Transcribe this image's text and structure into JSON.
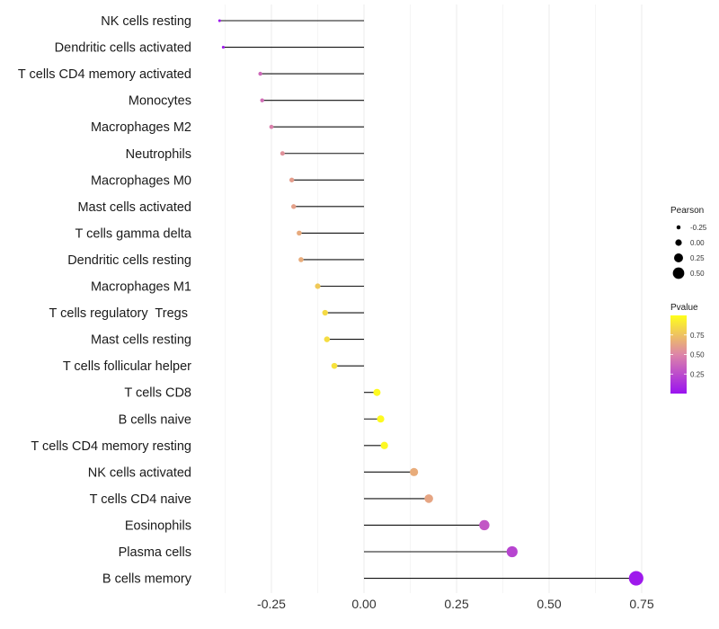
{
  "chart_data": {
    "type": "lollipop",
    "title": "",
    "xlabel": "",
    "ylabel": "",
    "xlim": [
      -0.4,
      0.76
    ],
    "x_ticks": [
      -0.25,
      0.0,
      0.25,
      0.5,
      0.75
    ],
    "x_tick_labels": [
      "-0.25",
      "0.00",
      "0.25",
      "0.50",
      "0.75"
    ],
    "grid": true,
    "categories": [
      "NK cells resting",
      "Dendritic cells activated",
      "T cells CD4 memory activated",
      "Monocytes",
      "Macrophages M2",
      "Neutrophils",
      "Macrophages M0",
      "Mast cells activated",
      "T cells gamma delta",
      "Dendritic cells resting",
      "Macrophages M1",
      "T cells regulatory  Tregs ",
      "Mast cells resting",
      "T cells follicular helper",
      "T cells CD8",
      "B cells naive",
      "T cells CD4 memory resting",
      "NK cells activated",
      "T cells CD4 naive",
      "Eosinophils",
      "Plasma cells",
      "B cells memory"
    ],
    "pearson": [
      -0.39,
      -0.38,
      -0.28,
      -0.275,
      -0.25,
      -0.22,
      -0.195,
      -0.19,
      -0.175,
      -0.17,
      -0.125,
      -0.105,
      -0.1,
      -0.08,
      0.035,
      0.045,
      0.055,
      0.135,
      0.175,
      0.325,
      0.4,
      0.735
    ],
    "pvalue": [
      0.02,
      0.04,
      0.38,
      0.4,
      0.48,
      0.55,
      0.6,
      0.61,
      0.65,
      0.66,
      0.78,
      0.85,
      0.86,
      0.88,
      0.98,
      0.98,
      0.97,
      0.66,
      0.63,
      0.3,
      0.22,
      0.03
    ],
    "size_legend": {
      "title": "Pearson",
      "values": [
        -0.25,
        0.0,
        0.25,
        0.5
      ],
      "labels": [
        "-0.25",
        "0.00",
        "0.25",
        "0.50"
      ]
    },
    "color_legend": {
      "title": "Pvalue",
      "range": [
        0.0,
        1.0
      ],
      "ticks": [
        0.25,
        0.5,
        0.75
      ],
      "tick_labels": [
        "0.25",
        "0.50",
        "0.75"
      ],
      "low_color": "#9a12f0",
      "mid_color": "#dd85a8",
      "high_color": "#ffff1a"
    },
    "stem_color": "#111111"
  }
}
